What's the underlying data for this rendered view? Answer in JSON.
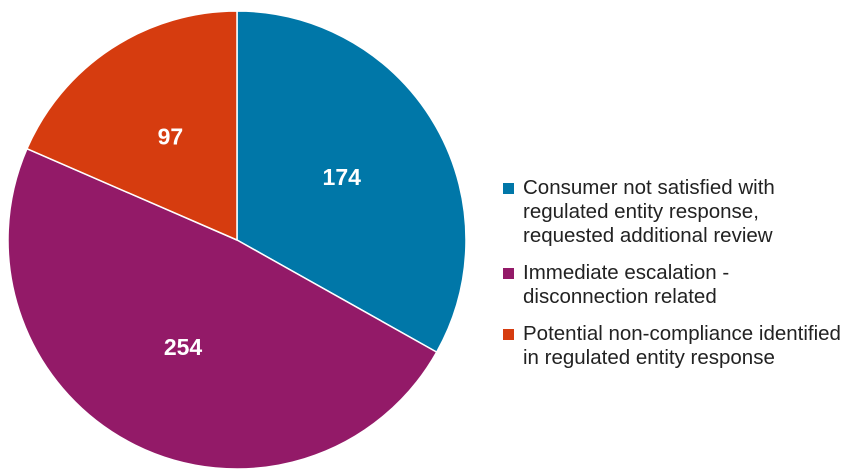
{
  "chart_data": {
    "type": "pie",
    "categories": [
      "Consumer not satisfied with regulated entity response, requested additional review",
      "Immediate escalation - disconnection related",
      "Potential non-compliance identified in regulated entity response"
    ],
    "values": [
      174,
      254,
      97
    ],
    "colors": [
      "#0077a8",
      "#931a68",
      "#d63c0f"
    ]
  }
}
